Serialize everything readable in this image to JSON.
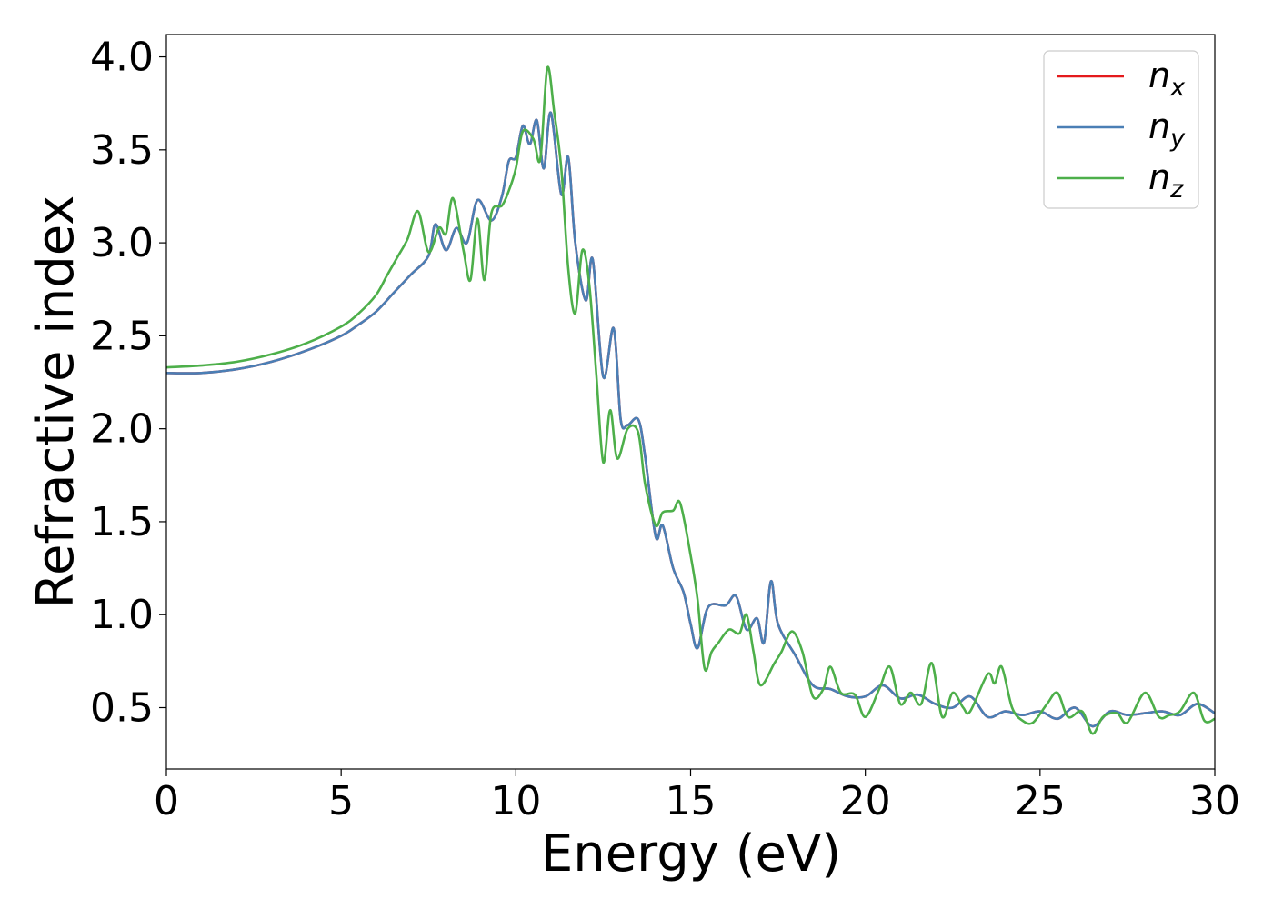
{
  "chart_data": {
    "type": "line",
    "title": "",
    "xlabel": "Energy (eV)",
    "ylabel": "Refractive index",
    "xlim": [
      0,
      30
    ],
    "ylim": [
      0.17,
      4.12
    ],
    "xticks": [
      0,
      5,
      10,
      15,
      20,
      25,
      30
    ],
    "yticks": [
      0.5,
      1.0,
      1.5,
      2.0,
      2.5,
      3.0,
      3.5,
      4.0
    ],
    "xtick_labels": [
      "0",
      "5",
      "10",
      "15",
      "20",
      "25",
      "30"
    ],
    "ytick_labels": [
      "0.5",
      "1.0",
      "1.5",
      "2.0",
      "2.5",
      "3.0",
      "3.5",
      "4.0"
    ],
    "grid": false,
    "legend_position": "top-right",
    "series": [
      {
        "name": "n_x",
        "legend": {
          "base": "n",
          "sub": "x"
        },
        "color": "#e41a1c",
        "points": [
          [
            0,
            2.3
          ],
          [
            1,
            2.3
          ],
          [
            2,
            2.32
          ],
          [
            3,
            2.36
          ],
          [
            4,
            2.42
          ],
          [
            5,
            2.5
          ],
          [
            5.5,
            2.56
          ],
          [
            6,
            2.63
          ],
          [
            6.5,
            2.73
          ],
          [
            7,
            2.83
          ],
          [
            7.5,
            2.93
          ],
          [
            7.7,
            3.1
          ],
          [
            8,
            2.96
          ],
          [
            8.3,
            3.08
          ],
          [
            8.6,
            3.0
          ],
          [
            8.9,
            3.23
          ],
          [
            9.3,
            3.12
          ],
          [
            9.6,
            3.25
          ],
          [
            9.8,
            3.44
          ],
          [
            10.0,
            3.46
          ],
          [
            10.2,
            3.63
          ],
          [
            10.4,
            3.53
          ],
          [
            10.6,
            3.66
          ],
          [
            10.8,
            3.4
          ],
          [
            11.0,
            3.7
          ],
          [
            11.3,
            3.26
          ],
          [
            11.5,
            3.46
          ],
          [
            11.7,
            3.0
          ],
          [
            12.0,
            2.69
          ],
          [
            12.2,
            2.91
          ],
          [
            12.5,
            2.28
          ],
          [
            12.8,
            2.54
          ],
          [
            13.0,
            2.05
          ],
          [
            13.2,
            2.02
          ],
          [
            13.5,
            2.05
          ],
          [
            13.7,
            1.85
          ],
          [
            14.0,
            1.42
          ],
          [
            14.2,
            1.48
          ],
          [
            14.5,
            1.25
          ],
          [
            14.8,
            1.12
          ],
          [
            15.0,
            0.95
          ],
          [
            15.2,
            0.82
          ],
          [
            15.5,
            1.04
          ],
          [
            16.0,
            1.05
          ],
          [
            16.3,
            1.1
          ],
          [
            16.6,
            0.92
          ],
          [
            16.9,
            0.98
          ],
          [
            17.1,
            0.85
          ],
          [
            17.3,
            1.18
          ],
          [
            17.5,
            0.95
          ],
          [
            18.0,
            0.78
          ],
          [
            18.5,
            0.62
          ],
          [
            19.0,
            0.6
          ],
          [
            19.5,
            0.56
          ],
          [
            20.0,
            0.56
          ],
          [
            20.5,
            0.62
          ],
          [
            21.0,
            0.55
          ],
          [
            21.5,
            0.57
          ],
          [
            22.0,
            0.52
          ],
          [
            22.5,
            0.5
          ],
          [
            23.0,
            0.56
          ],
          [
            23.5,
            0.45
          ],
          [
            24.0,
            0.48
          ],
          [
            24.5,
            0.46
          ],
          [
            25.0,
            0.48
          ],
          [
            25.5,
            0.44
          ],
          [
            26.0,
            0.5
          ],
          [
            26.5,
            0.4
          ],
          [
            27.0,
            0.48
          ],
          [
            27.5,
            0.46
          ],
          [
            28.0,
            0.47
          ],
          [
            28.5,
            0.48
          ],
          [
            29.0,
            0.46
          ],
          [
            29.5,
            0.52
          ],
          [
            30.0,
            0.47
          ]
        ]
      },
      {
        "name": "n_y",
        "legend": {
          "base": "n",
          "sub": "y"
        },
        "color": "#4a7fb5",
        "points": [
          [
            0,
            2.3
          ],
          [
            1,
            2.3
          ],
          [
            2,
            2.32
          ],
          [
            3,
            2.36
          ],
          [
            4,
            2.42
          ],
          [
            5,
            2.5
          ],
          [
            5.5,
            2.56
          ],
          [
            6,
            2.63
          ],
          [
            6.5,
            2.73
          ],
          [
            7,
            2.83
          ],
          [
            7.5,
            2.93
          ],
          [
            7.7,
            3.1
          ],
          [
            8,
            2.96
          ],
          [
            8.3,
            3.08
          ],
          [
            8.6,
            3.0
          ],
          [
            8.9,
            3.23
          ],
          [
            9.3,
            3.12
          ],
          [
            9.6,
            3.25
          ],
          [
            9.8,
            3.44
          ],
          [
            10.0,
            3.46
          ],
          [
            10.2,
            3.63
          ],
          [
            10.4,
            3.53
          ],
          [
            10.6,
            3.66
          ],
          [
            10.8,
            3.4
          ],
          [
            11.0,
            3.7
          ],
          [
            11.3,
            3.26
          ],
          [
            11.5,
            3.46
          ],
          [
            11.7,
            3.0
          ],
          [
            12.0,
            2.69
          ],
          [
            12.2,
            2.91
          ],
          [
            12.5,
            2.28
          ],
          [
            12.8,
            2.54
          ],
          [
            13.0,
            2.05
          ],
          [
            13.2,
            2.02
          ],
          [
            13.5,
            2.05
          ],
          [
            13.7,
            1.85
          ],
          [
            14.0,
            1.42
          ],
          [
            14.2,
            1.48
          ],
          [
            14.5,
            1.25
          ],
          [
            14.8,
            1.12
          ],
          [
            15.0,
            0.95
          ],
          [
            15.2,
            0.82
          ],
          [
            15.5,
            1.04
          ],
          [
            16.0,
            1.05
          ],
          [
            16.3,
            1.1
          ],
          [
            16.6,
            0.92
          ],
          [
            16.9,
            0.98
          ],
          [
            17.1,
            0.85
          ],
          [
            17.3,
            1.18
          ],
          [
            17.5,
            0.95
          ],
          [
            18.0,
            0.78
          ],
          [
            18.5,
            0.62
          ],
          [
            19.0,
            0.6
          ],
          [
            19.5,
            0.56
          ],
          [
            20.0,
            0.56
          ],
          [
            20.5,
            0.62
          ],
          [
            21.0,
            0.55
          ],
          [
            21.5,
            0.57
          ],
          [
            22.0,
            0.52
          ],
          [
            22.5,
            0.5
          ],
          [
            23.0,
            0.56
          ],
          [
            23.5,
            0.45
          ],
          [
            24.0,
            0.48
          ],
          [
            24.5,
            0.46
          ],
          [
            25.0,
            0.48
          ],
          [
            25.5,
            0.44
          ],
          [
            26.0,
            0.5
          ],
          [
            26.5,
            0.4
          ],
          [
            27.0,
            0.48
          ],
          [
            27.5,
            0.46
          ],
          [
            28.0,
            0.47
          ],
          [
            28.5,
            0.48
          ],
          [
            29.0,
            0.46
          ],
          [
            29.5,
            0.52
          ],
          [
            30.0,
            0.47
          ]
        ]
      },
      {
        "name": "n_z",
        "legend": {
          "base": "n",
          "sub": "z"
        },
        "color": "#4daf4a",
        "points": [
          [
            0,
            2.33
          ],
          [
            1,
            2.34
          ],
          [
            2,
            2.36
          ],
          [
            3,
            2.4
          ],
          [
            4,
            2.46
          ],
          [
            5,
            2.55
          ],
          [
            5.5,
            2.62
          ],
          [
            6,
            2.72
          ],
          [
            6.3,
            2.82
          ],
          [
            6.6,
            2.92
          ],
          [
            6.9,
            3.02
          ],
          [
            7.2,
            3.17
          ],
          [
            7.5,
            2.95
          ],
          [
            7.8,
            3.08
          ],
          [
            8.0,
            3.05
          ],
          [
            8.2,
            3.24
          ],
          [
            8.5,
            2.96
          ],
          [
            8.7,
            2.8
          ],
          [
            8.9,
            3.13
          ],
          [
            9.1,
            2.8
          ],
          [
            9.3,
            3.16
          ],
          [
            9.6,
            3.2
          ],
          [
            9.8,
            3.28
          ],
          [
            10.0,
            3.4
          ],
          [
            10.2,
            3.6
          ],
          [
            10.5,
            3.56
          ],
          [
            10.7,
            3.45
          ],
          [
            10.9,
            3.94
          ],
          [
            11.1,
            3.7
          ],
          [
            11.3,
            3.4
          ],
          [
            11.5,
            2.86
          ],
          [
            11.7,
            2.62
          ],
          [
            11.9,
            2.96
          ],
          [
            12.1,
            2.78
          ],
          [
            12.3,
            2.3
          ],
          [
            12.5,
            1.82
          ],
          [
            12.7,
            2.1
          ],
          [
            12.9,
            1.84
          ],
          [
            13.2,
            2.0
          ],
          [
            13.5,
            1.98
          ],
          [
            13.7,
            1.7
          ],
          [
            14.0,
            1.48
          ],
          [
            14.2,
            1.55
          ],
          [
            14.5,
            1.56
          ],
          [
            14.7,
            1.6
          ],
          [
            15.0,
            1.32
          ],
          [
            15.2,
            1.08
          ],
          [
            15.4,
            0.71
          ],
          [
            15.6,
            0.8
          ],
          [
            15.8,
            0.85
          ],
          [
            16.1,
            0.92
          ],
          [
            16.4,
            0.9
          ],
          [
            16.6,
            1.0
          ],
          [
            16.8,
            0.8
          ],
          [
            17.0,
            0.62
          ],
          [
            17.4,
            0.74
          ],
          [
            17.6,
            0.8
          ],
          [
            17.9,
            0.91
          ],
          [
            18.2,
            0.8
          ],
          [
            18.5,
            0.56
          ],
          [
            18.8,
            0.6
          ],
          [
            19.0,
            0.72
          ],
          [
            19.3,
            0.58
          ],
          [
            19.7,
            0.57
          ],
          [
            20.0,
            0.45
          ],
          [
            20.4,
            0.6
          ],
          [
            20.7,
            0.72
          ],
          [
            21.0,
            0.52
          ],
          [
            21.3,
            0.58
          ],
          [
            21.6,
            0.52
          ],
          [
            21.9,
            0.74
          ],
          [
            22.2,
            0.45
          ],
          [
            22.5,
            0.58
          ],
          [
            22.8,
            0.5
          ],
          [
            23.0,
            0.48
          ],
          [
            23.5,
            0.68
          ],
          [
            23.7,
            0.63
          ],
          [
            23.9,
            0.72
          ],
          [
            24.2,
            0.5
          ],
          [
            24.5,
            0.43
          ],
          [
            24.8,
            0.42
          ],
          [
            25.2,
            0.52
          ],
          [
            25.5,
            0.58
          ],
          [
            25.8,
            0.45
          ],
          [
            26.2,
            0.48
          ],
          [
            26.5,
            0.36
          ],
          [
            26.8,
            0.45
          ],
          [
            27.2,
            0.47
          ],
          [
            27.5,
            0.42
          ],
          [
            28.0,
            0.58
          ],
          [
            28.4,
            0.45
          ],
          [
            28.7,
            0.46
          ],
          [
            29.0,
            0.48
          ],
          [
            29.4,
            0.58
          ],
          [
            29.7,
            0.43
          ],
          [
            30.0,
            0.44
          ]
        ]
      }
    ]
  }
}
